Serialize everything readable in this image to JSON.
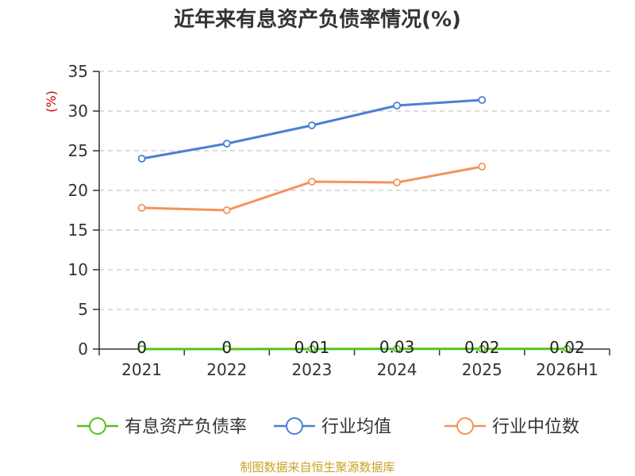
{
  "chart_data": {
    "type": "line",
    "title": "近年来有息资产负债率情况(%)",
    "ylabel": "(%)",
    "xlabel": "",
    "categories": [
      "2021",
      "2022",
      "2023",
      "2024",
      "2025",
      "2026H1"
    ],
    "ylim": [
      0,
      35
    ],
    "yticks": [
      0,
      5,
      10,
      15,
      20,
      25,
      30,
      35
    ],
    "grid": true,
    "legend_position": "bottom",
    "series": [
      {
        "name": "有息资产负债率",
        "color": "#52c41a",
        "values": [
          0,
          0,
          0.01,
          0.03,
          0.02,
          0.02
        ],
        "data_labels": [
          "0",
          "0",
          "0.01",
          "0.03",
          "0.02",
          "0.02"
        ]
      },
      {
        "name": "行业均值",
        "color": "#4a7fd4",
        "values": [
          24.0,
          25.9,
          28.2,
          30.7,
          31.4,
          null
        ]
      },
      {
        "name": "行业中位数",
        "color": "#f4935a",
        "values": [
          17.8,
          17.5,
          21.1,
          21.0,
          23.0,
          null
        ]
      }
    ]
  },
  "source": "制图数据来自恒生聚源数据库"
}
